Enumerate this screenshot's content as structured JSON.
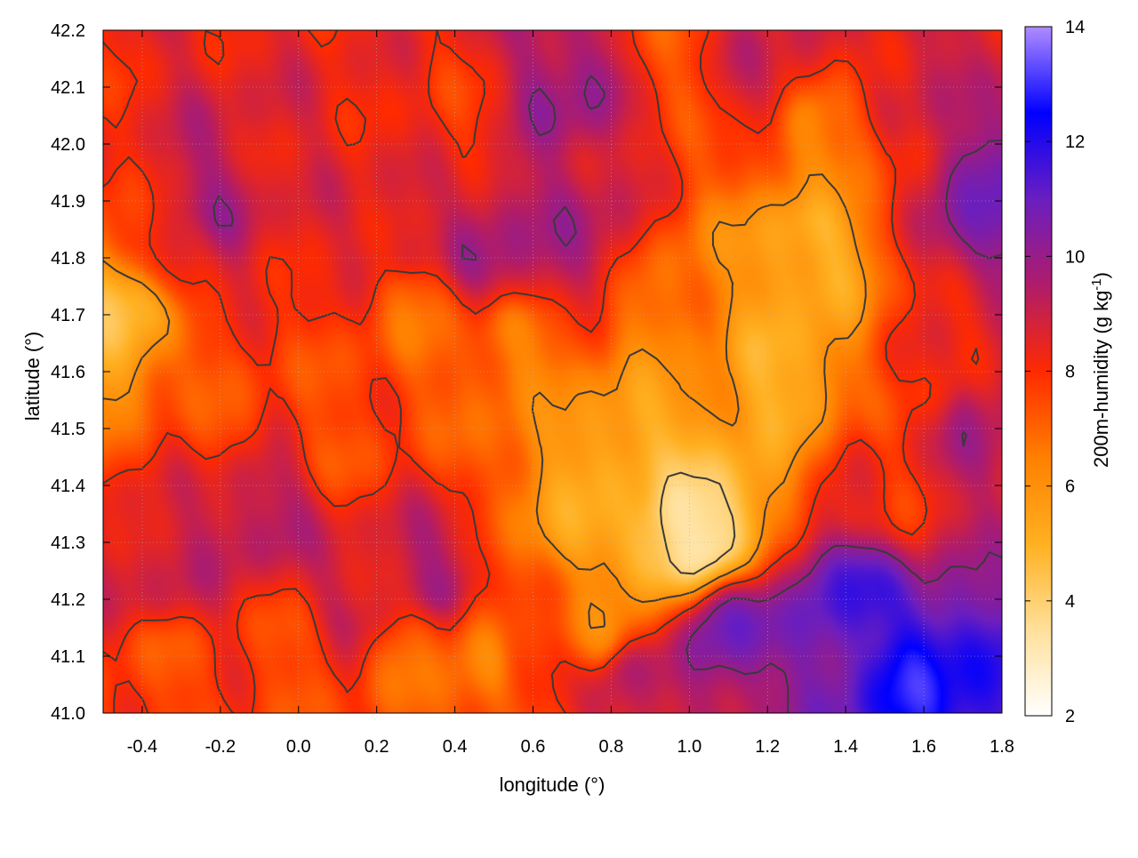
{
  "chart_data": {
    "type": "heatmap",
    "title": "",
    "xlabel": "longitude (°)",
    "ylabel": "latitude (°)",
    "colorbar_label": "200m-humidity (g kg-1)",
    "colorbar_label_base": "200m-humidity (g kg",
    "colorbar_label_sup": "-1",
    "colorbar_label_tail": ")",
    "xlim": [
      -0.5,
      1.8
    ],
    "ylim": [
      41.0,
      42.2
    ],
    "zlim": [
      2,
      14
    ],
    "x_ticks": [
      "-0.4",
      "-0.2",
      "0.0",
      "0.2",
      "0.4",
      "0.6",
      "0.8",
      "1.0",
      "1.2",
      "1.4",
      "1.6",
      "1.8"
    ],
    "x_tick_values": [
      -0.4,
      -0.2,
      0.0,
      0.2,
      0.4,
      0.6,
      0.8,
      1.0,
      1.2,
      1.4,
      1.6,
      1.8
    ],
    "y_ticks": [
      "41.0",
      "41.1",
      "41.2",
      "41.3",
      "41.4",
      "41.5",
      "41.6",
      "41.7",
      "41.8",
      "41.9",
      "42.0",
      "42.1",
      "42.2"
    ],
    "y_tick_values": [
      41.0,
      41.1,
      41.2,
      41.3,
      41.4,
      41.5,
      41.6,
      41.7,
      41.8,
      41.9,
      42.0,
      42.1,
      42.2
    ],
    "z_ticks": [
      "2",
      "4",
      "6",
      "8",
      "10",
      "12",
      "14"
    ],
    "z_tick_values": [
      2,
      4,
      6,
      8,
      10,
      12,
      14
    ],
    "grid": true,
    "colormap": [
      "#ffffff",
      "#ffe09a",
      "#ffb020",
      "#ff8000",
      "#ff2a00",
      "#b01c6a",
      "#6a1ec0",
      "#0000ff",
      "#b08cff"
    ],
    "contour_color": "#3a3a3a",
    "features": [
      {
        "lon": -0.45,
        "lat": 41.7,
        "z": 4.5
      },
      {
        "lon": -0.3,
        "lat": 41.8,
        "z": 8.5
      },
      {
        "lon": -0.2,
        "lat": 41.9,
        "z": 9.5
      },
      {
        "lon": 0.0,
        "lat": 41.95,
        "z": 8.5
      },
      {
        "lon": 0.25,
        "lat": 41.85,
        "z": 8.8
      },
      {
        "lon": 0.5,
        "lat": 41.82,
        "z": 9.8
      },
      {
        "lon": 0.7,
        "lat": 41.85,
        "z": 9.5
      },
      {
        "lon": 0.7,
        "lat": 42.1,
        "z": 10.0
      },
      {
        "lon": 0.95,
        "lat": 42.15,
        "z": 7.5
      },
      {
        "lon": 1.2,
        "lat": 42.15,
        "z": 9.0
      },
      {
        "lon": 1.6,
        "lat": 42.1,
        "z": 9.0
      },
      {
        "lon": 1.75,
        "lat": 41.9,
        "z": 10.5
      },
      {
        "lon": 1.75,
        "lat": 41.5,
        "z": 9.5
      },
      {
        "lon": 1.3,
        "lat": 41.8,
        "z": 5.0
      },
      {
        "lon": 1.25,
        "lat": 41.6,
        "z": 5.0
      },
      {
        "lon": 1.0,
        "lat": 41.7,
        "z": 6.5
      },
      {
        "lon": 0.85,
        "lat": 41.45,
        "z": 5.0
      },
      {
        "lon": 0.95,
        "lat": 41.3,
        "z": 3.5
      },
      {
        "lon": 1.05,
        "lat": 41.32,
        "z": 3.3
      },
      {
        "lon": 0.7,
        "lat": 41.35,
        "z": 5.5
      },
      {
        "lon": 0.55,
        "lat": 41.62,
        "z": 6.5
      },
      {
        "lon": 0.3,
        "lat": 41.7,
        "z": 7.0
      },
      {
        "lon": 0.1,
        "lat": 41.5,
        "z": 7.5
      },
      {
        "lon": -0.2,
        "lat": 41.55,
        "z": 7.5
      },
      {
        "lon": -0.1,
        "lat": 41.35,
        "z": 9.5
      },
      {
        "lon": -0.35,
        "lat": 41.25,
        "z": 9.0
      },
      {
        "lon": 0.15,
        "lat": 41.2,
        "z": 9.0
      },
      {
        "lon": 0.35,
        "lat": 41.25,
        "z": 9.5
      },
      {
        "lon": 0.45,
        "lat": 41.08,
        "z": 6.5
      },
      {
        "lon": 0.3,
        "lat": 41.1,
        "z": 7.0
      },
      {
        "lon": 0.0,
        "lat": 41.1,
        "z": 7.5
      },
      {
        "lon": -0.35,
        "lat": 41.08,
        "z": 7.5
      },
      {
        "lon": 0.6,
        "lat": 41.1,
        "z": 8.0
      },
      {
        "lon": 0.75,
        "lat": 41.15,
        "z": 6.5
      },
      {
        "lon": 0.85,
        "lat": 41.05,
        "z": 9.5
      },
      {
        "lon": 1.1,
        "lat": 41.15,
        "z": 11.0
      },
      {
        "lon": 1.4,
        "lat": 41.2,
        "z": 11.5
      },
      {
        "lon": 1.6,
        "lat": 41.05,
        "z": 12.5
      },
      {
        "lon": 1.5,
        "lat": 41.4,
        "z": 8.0
      },
      {
        "lon": 1.6,
        "lat": 41.6,
        "z": 8.0
      },
      {
        "lon": 1.35,
        "lat": 42.0,
        "z": 6.5
      },
      {
        "lon": 0.4,
        "lat": 42.05,
        "z": 8.0
      }
    ]
  }
}
